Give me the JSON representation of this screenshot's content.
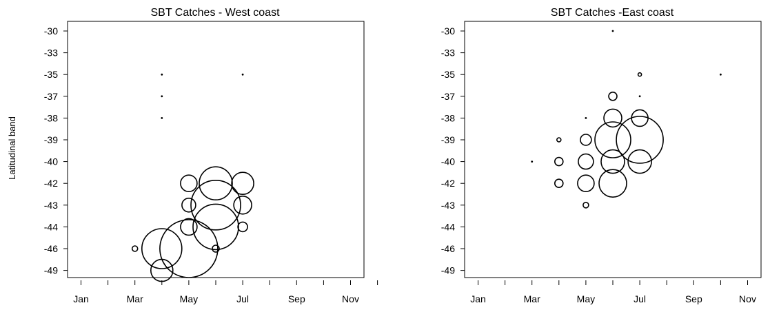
{
  "chart_data": [
    {
      "type": "scatter",
      "title": "SBT Catches - West coast",
      "xlabel": "",
      "ylabel": "Latitudinal band",
      "x_ticks_minor_count": 12,
      "x_tick_labels": [
        "Jan",
        "Mar",
        "May",
        "Jul",
        "Sep",
        "Nov"
      ],
      "y_categories": [
        "-30",
        "-33",
        "-35",
        "-37",
        "-38",
        "-39",
        "-40",
        "-42",
        "-43",
        "-44",
        "-46",
        "-49"
      ],
      "grid": false,
      "legend": "none",
      "points": [
        {
          "month": 4,
          "lat": "-35",
          "size": 0.5
        },
        {
          "month": 4,
          "lat": "-37",
          "size": 0.5
        },
        {
          "month": 4,
          "lat": "-38",
          "size": 0.5
        },
        {
          "month": 7,
          "lat": "-35",
          "size": 0.5
        },
        {
          "month": 3,
          "lat": "-46",
          "size": 4
        },
        {
          "month": 4,
          "lat": "-46",
          "size": 29
        },
        {
          "month": 4,
          "lat": "-49",
          "size": 16
        },
        {
          "month": 5,
          "lat": "-46",
          "size": 42
        },
        {
          "month": 5,
          "lat": "-44",
          "size": 12
        },
        {
          "month": 5,
          "lat": "-43",
          "size": 10
        },
        {
          "month": 5,
          "lat": "-42",
          "size": 12
        },
        {
          "month": 6,
          "lat": "-42",
          "size": 24
        },
        {
          "month": 6,
          "lat": "-43",
          "size": 36
        },
        {
          "month": 6,
          "lat": "-44",
          "size": 33
        },
        {
          "month": 6,
          "lat": "-46",
          "size": 5
        },
        {
          "month": 7,
          "lat": "-42",
          "size": 16
        },
        {
          "month": 7,
          "lat": "-43",
          "size": 13
        },
        {
          "month": 7,
          "lat": "-44",
          "size": 7
        }
      ]
    },
    {
      "type": "scatter",
      "title": "SBT Catches -East coast",
      "xlabel": "",
      "ylabel": "",
      "x_ticks_minor_count": 12,
      "x_tick_labels": [
        "Jan",
        "Mar",
        "May",
        "Jul",
        "Sep",
        "Nov"
      ],
      "y_categories": [
        "-30",
        "-33",
        "-35",
        "-37",
        "-38",
        "-39",
        "-40",
        "-42",
        "-43",
        "-44",
        "-46",
        "-49"
      ],
      "grid": false,
      "legend": "none",
      "points": [
        {
          "month": 3,
          "lat": "-40",
          "size": 0.5
        },
        {
          "month": 4,
          "lat": "-39",
          "size": 3
        },
        {
          "month": 4,
          "lat": "-40",
          "size": 6
        },
        {
          "month": 4,
          "lat": "-42",
          "size": 6
        },
        {
          "month": 5,
          "lat": "-38",
          "size": 0.5
        },
        {
          "month": 5,
          "lat": "-39",
          "size": 8
        },
        {
          "month": 5,
          "lat": "-40",
          "size": 11
        },
        {
          "month": 5,
          "lat": "-42",
          "size": 12
        },
        {
          "month": 5,
          "lat": "-43",
          "size": 4
        },
        {
          "month": 6,
          "lat": "-30",
          "size": 0.5
        },
        {
          "month": 6,
          "lat": "-37",
          "size": 6
        },
        {
          "month": 6,
          "lat": "-38",
          "size": 13
        },
        {
          "month": 6,
          "lat": "-39",
          "size": 26
        },
        {
          "month": 6,
          "lat": "-40",
          "size": 17
        },
        {
          "month": 6,
          "lat": "-42",
          "size": 20
        },
        {
          "month": 7,
          "lat": "-35",
          "size": 2.5
        },
        {
          "month": 7,
          "lat": "-37",
          "size": 0.5
        },
        {
          "month": 7,
          "lat": "-38",
          "size": 12
        },
        {
          "month": 7,
          "lat": "-39",
          "size": 34
        },
        {
          "month": 7,
          "lat": "-40",
          "size": 17
        },
        {
          "month": 10,
          "lat": "-35",
          "size": 0.5
        }
      ]
    }
  ]
}
